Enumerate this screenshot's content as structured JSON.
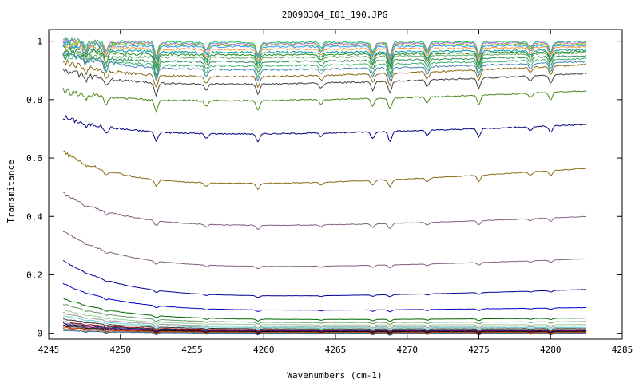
{
  "chart_data": {
    "type": "line",
    "title": "20090304_I01_190.JPG",
    "xlabel": "Wavenumbers (cm-1)",
    "ylabel": "Transmitance",
    "xlim": [
      4245,
      4285
    ],
    "ylim": [
      -0.02,
      1.04
    ],
    "x_ticks": [
      4245,
      4250,
      4255,
      4260,
      4265,
      4270,
      4275,
      4280,
      4285
    ],
    "y_ticks": [
      0,
      0.2,
      0.4,
      0.6,
      0.8,
      1
    ],
    "x_tick_labels": [
      "4245",
      "4250",
      "4255",
      "4260",
      "4265",
      "4270",
      "4275",
      "4280",
      "4285"
    ],
    "y_tick_labels": [
      "0",
      "0.2",
      "0.4",
      "0.6",
      "0.8",
      "1"
    ],
    "grid": false,
    "legend": "none",
    "x_range_data": [
      4246,
      4282.5
    ],
    "absorption_lines": [
      4247.6,
      4249.0,
      4252.5,
      4256.0,
      4259.6,
      4264.0,
      4267.6,
      4268.8,
      4271.4,
      4275.0,
      4278.6,
      4280.0
    ],
    "series": [
      {
        "start": 1.0,
        "mid": 0.995,
        "end": 0.998,
        "color": "#00cc66"
      },
      {
        "start": 1.0,
        "mid": 0.99,
        "end": 0.995,
        "color": "#cc66cc"
      },
      {
        "start": 0.995,
        "mid": 0.985,
        "end": 0.99,
        "color": "#66cc00"
      },
      {
        "start": 0.99,
        "mid": 0.98,
        "end": 0.985,
        "color": "#3399ff"
      },
      {
        "start": 0.985,
        "mid": 0.97,
        "end": 0.98,
        "color": "#ff9933"
      },
      {
        "start": 0.98,
        "mid": 0.96,
        "end": 0.97,
        "color": "#009999"
      },
      {
        "start": 0.97,
        "mid": 0.95,
        "end": 0.965,
        "color": "#228b22"
      },
      {
        "start": 0.96,
        "mid": 0.94,
        "end": 0.96,
        "color": "#66aa66"
      },
      {
        "start": 0.955,
        "mid": 0.925,
        "end": 0.95,
        "color": "#2e8b57"
      },
      {
        "start": 0.95,
        "mid": 0.91,
        "end": 0.94,
        "color": "#3cb371"
      },
      {
        "start": 0.96,
        "mid": 0.895,
        "end": 0.93,
        "color": "#4682b4"
      },
      {
        "start": 0.93,
        "mid": 0.87,
        "end": 0.92,
        "color": "#8b6914"
      },
      {
        "start": 0.9,
        "mid": 0.845,
        "end": 0.89,
        "color": "#404040"
      },
      {
        "start": 0.83,
        "mid": 0.79,
        "end": 0.83,
        "color": "#4a8a1a"
      },
      {
        "start": 0.74,
        "mid": 0.675,
        "end": 0.715,
        "color": "#000080"
      },
      {
        "start": 0.62,
        "mid": 0.5,
        "end": 0.565,
        "color": "#8b6914"
      },
      {
        "start": 0.48,
        "mid": 0.36,
        "end": 0.4,
        "color": "#806080"
      },
      {
        "start": 0.35,
        "mid": 0.22,
        "end": 0.255,
        "color": "#806080"
      },
      {
        "start": 0.25,
        "mid": 0.12,
        "end": 0.15,
        "color": "#000099"
      },
      {
        "start": 0.17,
        "mid": 0.075,
        "end": 0.088,
        "color": "#0000cc"
      },
      {
        "start": 0.12,
        "mid": 0.045,
        "end": 0.052,
        "color": "#006600"
      },
      {
        "start": 0.1,
        "mid": 0.035,
        "end": 0.04,
        "color": "#669966"
      },
      {
        "start": 0.08,
        "mid": 0.028,
        "end": 0.03,
        "color": "#99cc99"
      },
      {
        "start": 0.07,
        "mid": 0.022,
        "end": 0.025,
        "color": "#999999"
      },
      {
        "start": 0.06,
        "mid": 0.018,
        "end": 0.02,
        "color": "#66cccc"
      },
      {
        "start": 0.05,
        "mid": 0.014,
        "end": 0.016,
        "color": "#333333"
      },
      {
        "start": 0.04,
        "mid": 0.011,
        "end": 0.012,
        "color": "#990000"
      },
      {
        "start": 0.035,
        "mid": 0.009,
        "end": 0.01,
        "color": "#003366"
      },
      {
        "start": 0.03,
        "mid": 0.007,
        "end": 0.008,
        "color": "#660066"
      },
      {
        "start": 0.025,
        "mid": 0.005,
        "end": 0.006,
        "color": "#000000"
      },
      {
        "start": 0.02,
        "mid": 0.003,
        "end": 0.004,
        "color": "#cc3300"
      },
      {
        "start": 0.015,
        "mid": 0.002,
        "end": 0.002,
        "color": "#996633"
      },
      {
        "start": 0.01,
        "mid": 0.0,
        "end": 0.0,
        "color": "#336699"
      }
    ]
  }
}
